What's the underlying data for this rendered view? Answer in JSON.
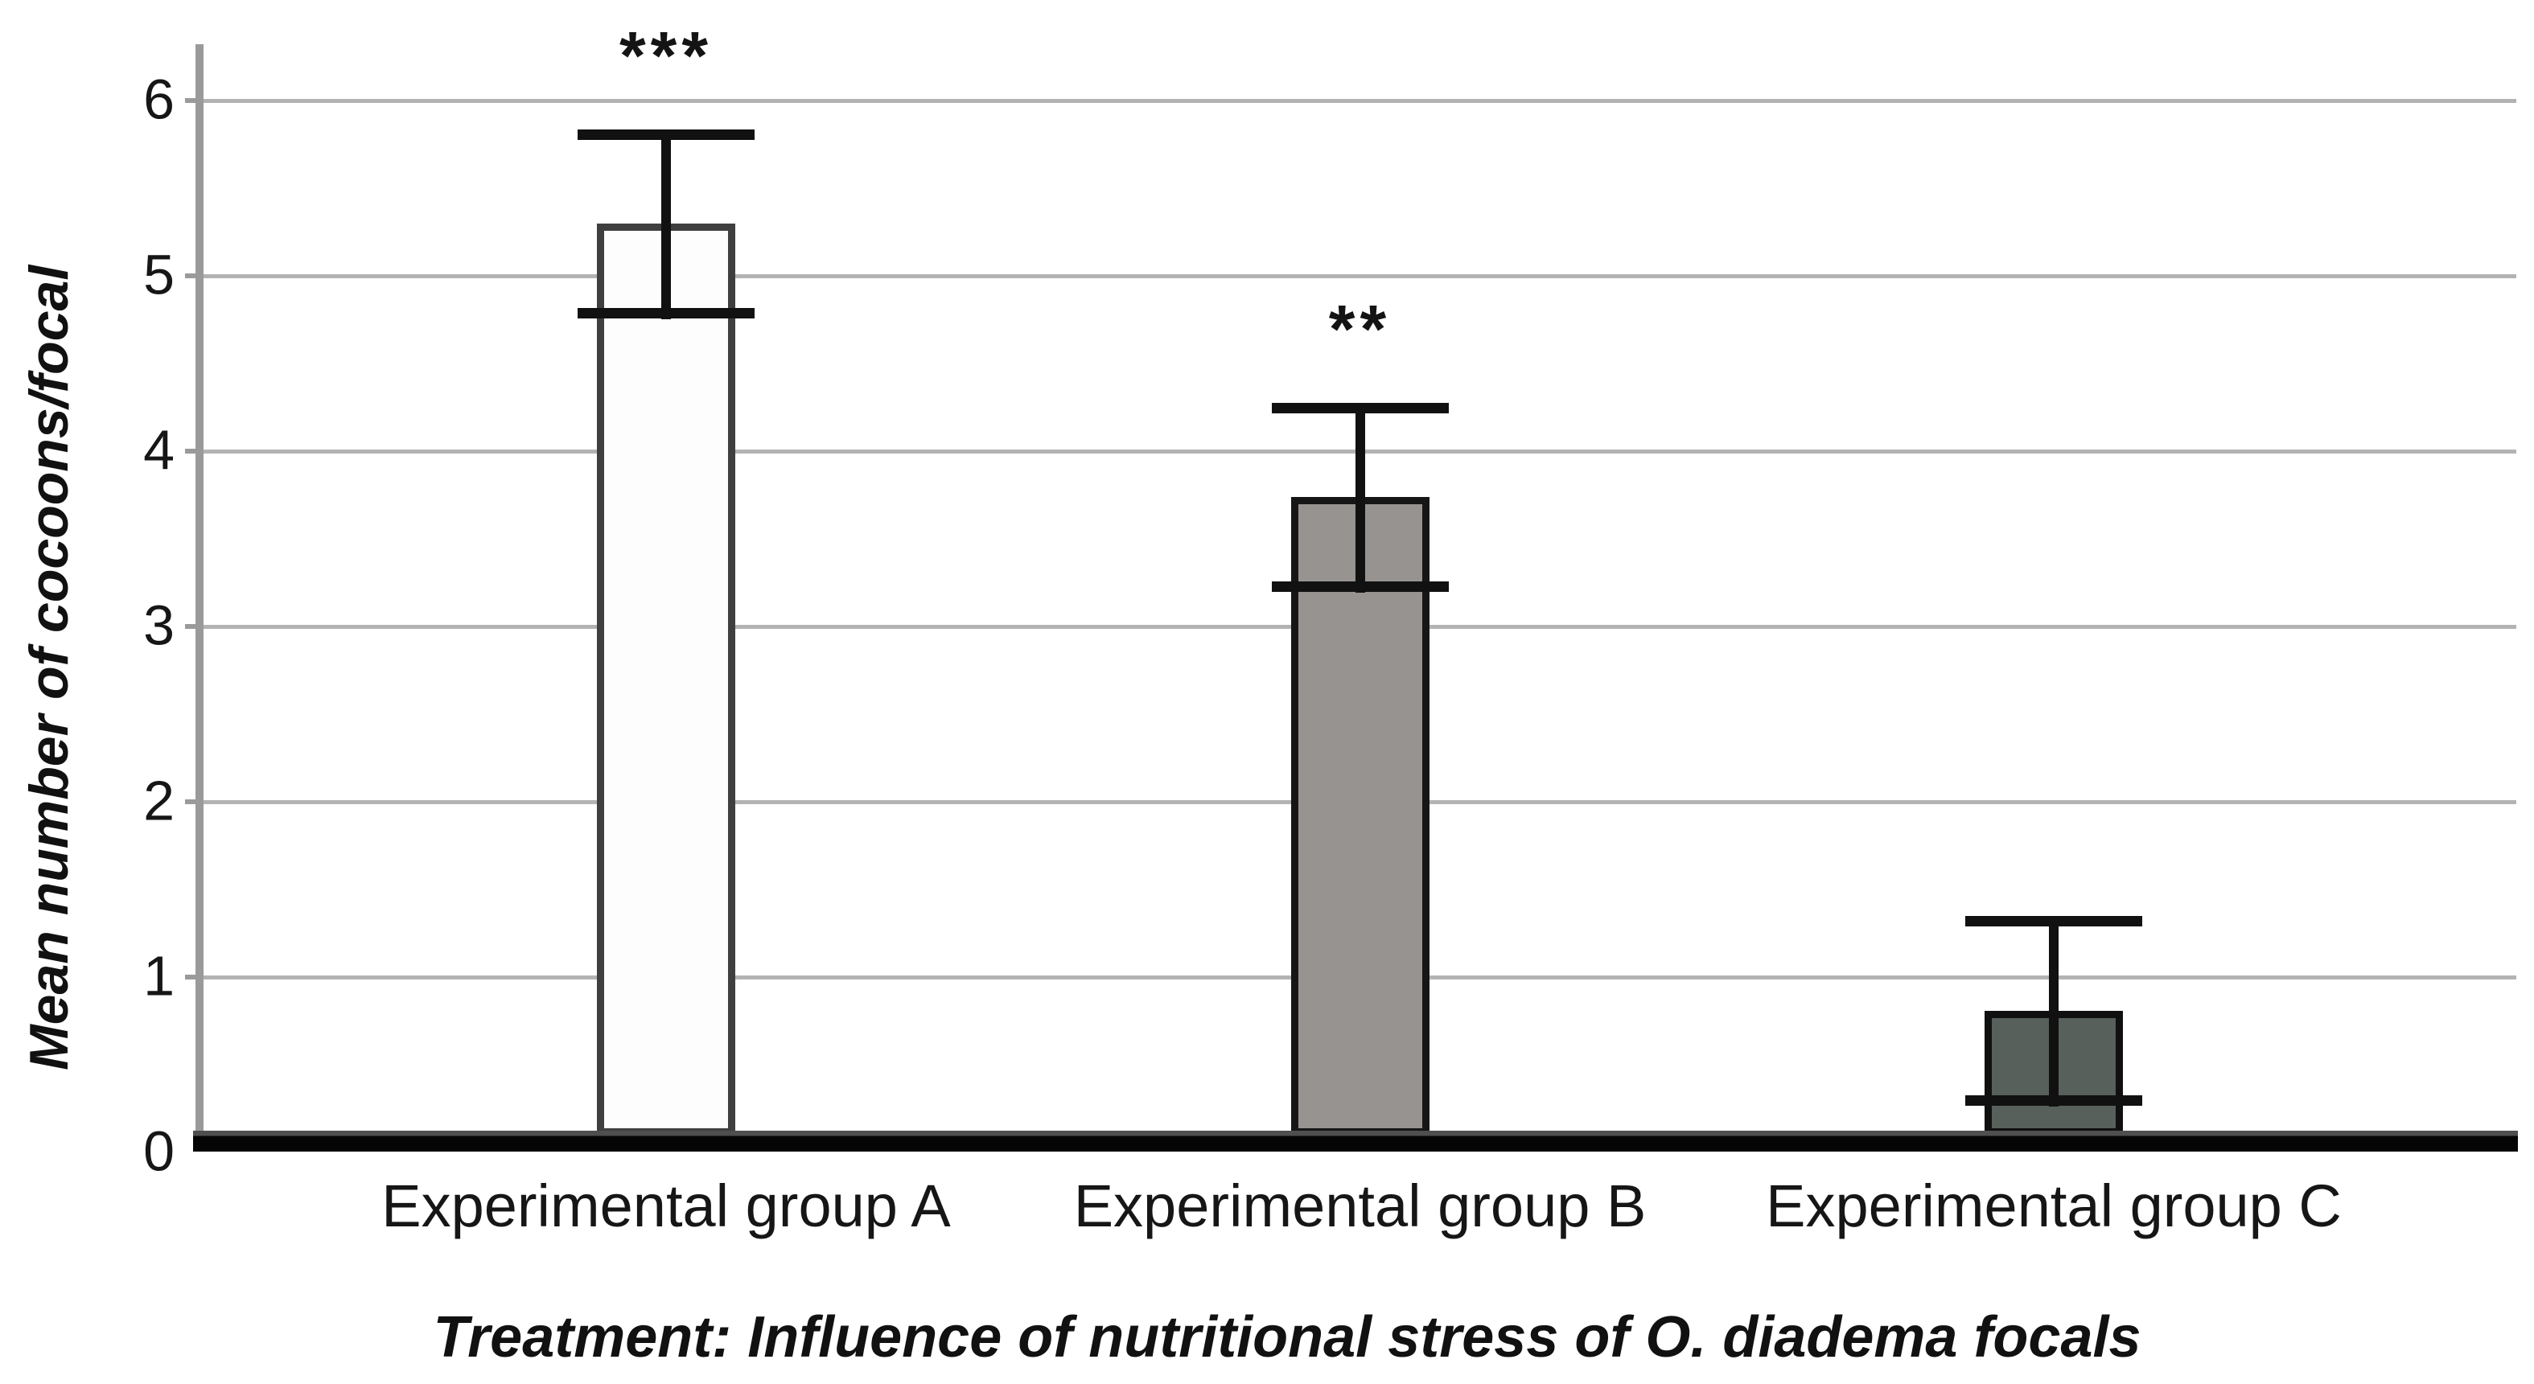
{
  "chart_data": {
    "type": "bar",
    "title": "",
    "xlabel": "Treatment: Influence of nutritional stress of O. diadema focals",
    "ylabel": "Mean number of cocoons/focal",
    "categories": [
      "Experimental group A",
      "Experimental group B",
      "Experimental group C"
    ],
    "values": [
      5.29,
      3.73,
      0.8
    ],
    "error_bars": [
      0.51,
      0.51,
      0.51
    ],
    "error_bar_range": [
      [
        4.78,
        5.8
      ],
      [
        3.22,
        4.24
      ],
      [
        0.29,
        1.31
      ]
    ],
    "significance": [
      "***",
      "**",
      ""
    ],
    "yticks": [
      0,
      1,
      2,
      3,
      4,
      5,
      6
    ],
    "ylim": [
      0,
      6.45
    ],
    "grid": "horizontal",
    "legend_position": "none",
    "bar_fill_colors": [
      "#FDFDFD",
      "#969390",
      "#57605A"
    ],
    "bar_border_colors": [
      "#3F3F3F",
      "#161616",
      "#101010"
    ],
    "error_bar_color": "#111111",
    "gridline_color": "#B3B3B3",
    "axis_color": "#9A9A9A",
    "baseline_color": "#000000",
    "text_color": "#161616"
  }
}
